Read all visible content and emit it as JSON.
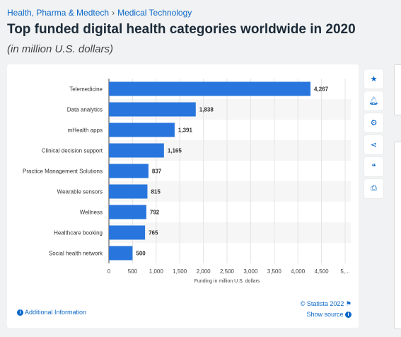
{
  "breadcrumb": {
    "part1": "Health, Pharma & Medtech",
    "separator": "›",
    "part2": "Medical Technology"
  },
  "title": "Top funded digital health categories worldwide in 2020",
  "subtitle": "(in million U.S. dollars)",
  "chart_data": {
    "type": "bar",
    "orientation": "horizontal",
    "categories": [
      "Telemedicine",
      "Data analytics",
      "mHealth apps",
      "Clinical decision support",
      "Practice Management Solutions",
      "Wearable sensors",
      "Wellness",
      "Healthcare booking",
      "Social health network"
    ],
    "values": [
      4267,
      1838,
      1391,
      1165,
      837,
      815,
      792,
      765,
      500
    ],
    "value_labels": [
      "4,267",
      "1,838",
      "1,391",
      "1,165",
      "837",
      "815",
      "792",
      "765",
      "500"
    ],
    "xlabel": "Funding in million U.S. dollars",
    "ylabel": "",
    "xlim": [
      0,
      5000
    ],
    "xticks": [
      "0",
      "500",
      "1,000",
      "1,500",
      "2,000",
      "2,500",
      "3,000",
      "3,500",
      "4,000",
      "4,500",
      "5,..."
    ],
    "bar_color": "#2876dd",
    "stripe_color": "#f6f6f6",
    "grid": true
  },
  "footer": {
    "additional_info": "Additional Information",
    "copyright": "© Statista 2022",
    "show_source": "Show source"
  },
  "toolbar": {
    "icons": [
      "star-icon",
      "bell-icon",
      "gear-icon",
      "share-icon",
      "quote-icon",
      "print-icon"
    ]
  },
  "colors": {
    "accent": "#0b68c8",
    "background": "#f1f2f3"
  }
}
